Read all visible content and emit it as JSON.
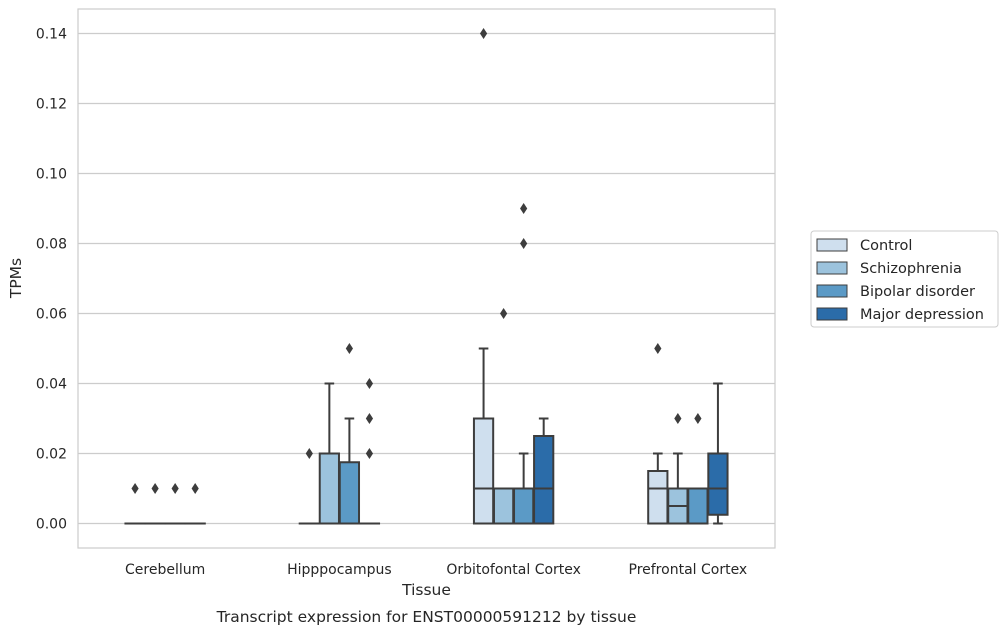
{
  "caption": "Transcript expression for ENST00000591212 by tissue",
  "chart_data": {
    "type": "boxplot",
    "xlabel": "Tissue",
    "ylabel": "TPMs",
    "ylim": [
      -0.007,
      0.147
    ],
    "yticks": [
      0.0,
      0.02,
      0.04,
      0.06,
      0.08,
      0.1,
      0.12,
      0.14
    ],
    "ytick_labels": [
      "0.00",
      "0.02",
      "0.04",
      "0.06",
      "0.08",
      "0.10",
      "0.12",
      "0.14"
    ],
    "grid": "horizontal",
    "legend_position": "outside-right",
    "categories": [
      "Cerebellum",
      "Hipppocampus",
      "Orbitofontal Cortex",
      "Prefrontal Cortex"
    ],
    "series": [
      {
        "name": "Control",
        "color": "#cfdfee",
        "boxes": [
          {
            "q1": 0,
            "median": 0,
            "q3": 0,
            "whisker_low": 0,
            "whisker_high": 0,
            "outliers": [
              0.01
            ]
          },
          {
            "q1": 0,
            "median": 0,
            "q3": 0,
            "whisker_low": 0,
            "whisker_high": 0,
            "outliers": [
              0.02
            ]
          },
          {
            "q1": 0,
            "median": 0.01,
            "q3": 0.03,
            "whisker_low": 0,
            "whisker_high": 0.05,
            "outliers": [
              0.14
            ]
          },
          {
            "q1": 0,
            "median": 0.01,
            "q3": 0.015,
            "whisker_low": 0,
            "whisker_high": 0.02,
            "outliers": [
              0.05
            ]
          }
        ]
      },
      {
        "name": "Schizophrenia",
        "color": "#9cc3dd",
        "boxes": [
          {
            "q1": 0,
            "median": 0,
            "q3": 0,
            "whisker_low": 0,
            "whisker_high": 0,
            "outliers": [
              0.01
            ]
          },
          {
            "q1": 0,
            "median": 0,
            "q3": 0.02,
            "whisker_low": 0,
            "whisker_high": 0.04,
            "outliers": []
          },
          {
            "q1": 0,
            "median": 0.01,
            "q3": 0.01,
            "whisker_low": 0,
            "whisker_high": 0.01,
            "outliers": [
              0.06
            ]
          },
          {
            "q1": 0,
            "median": 0.005,
            "q3": 0.01,
            "whisker_low": 0,
            "whisker_high": 0.02,
            "outliers": [
              0.03
            ]
          }
        ]
      },
      {
        "name": "Bipolar disorder",
        "color": "#5b9ac6",
        "boxes": [
          {
            "q1": 0,
            "median": 0,
            "q3": 0,
            "whisker_low": 0,
            "whisker_high": 0,
            "outliers": [
              0.01
            ]
          },
          {
            "q1": 0,
            "median": 0,
            "q3": 0.0175,
            "whisker_low": 0,
            "whisker_high": 0.03,
            "outliers": [
              0.05
            ]
          },
          {
            "q1": 0,
            "median": 0.01,
            "q3": 0.01,
            "whisker_low": 0,
            "whisker_high": 0.02,
            "outliers": [
              0.08,
              0.09
            ]
          },
          {
            "q1": 0,
            "median": 0.01,
            "q3": 0.01,
            "whisker_low": 0,
            "whisker_high": 0.01,
            "outliers": [
              0.03
            ]
          }
        ]
      },
      {
        "name": "Major depression",
        "color": "#2b6ca9",
        "boxes": [
          {
            "q1": 0,
            "median": 0,
            "q3": 0,
            "whisker_low": 0,
            "whisker_high": 0,
            "outliers": [
              0.01
            ]
          },
          {
            "q1": 0,
            "median": 0,
            "q3": 0,
            "whisker_low": 0,
            "whisker_high": 0,
            "outliers": [
              0.02,
              0.03,
              0.04
            ]
          },
          {
            "q1": 0,
            "median": 0.01,
            "q3": 0.025,
            "whisker_low": 0,
            "whisker_high": 0.03,
            "outliers": []
          },
          {
            "q1": 0.0025,
            "median": 0.01,
            "q3": 0.02,
            "whisker_low": 0,
            "whisker_high": 0.04,
            "outliers": []
          }
        ]
      }
    ]
  }
}
